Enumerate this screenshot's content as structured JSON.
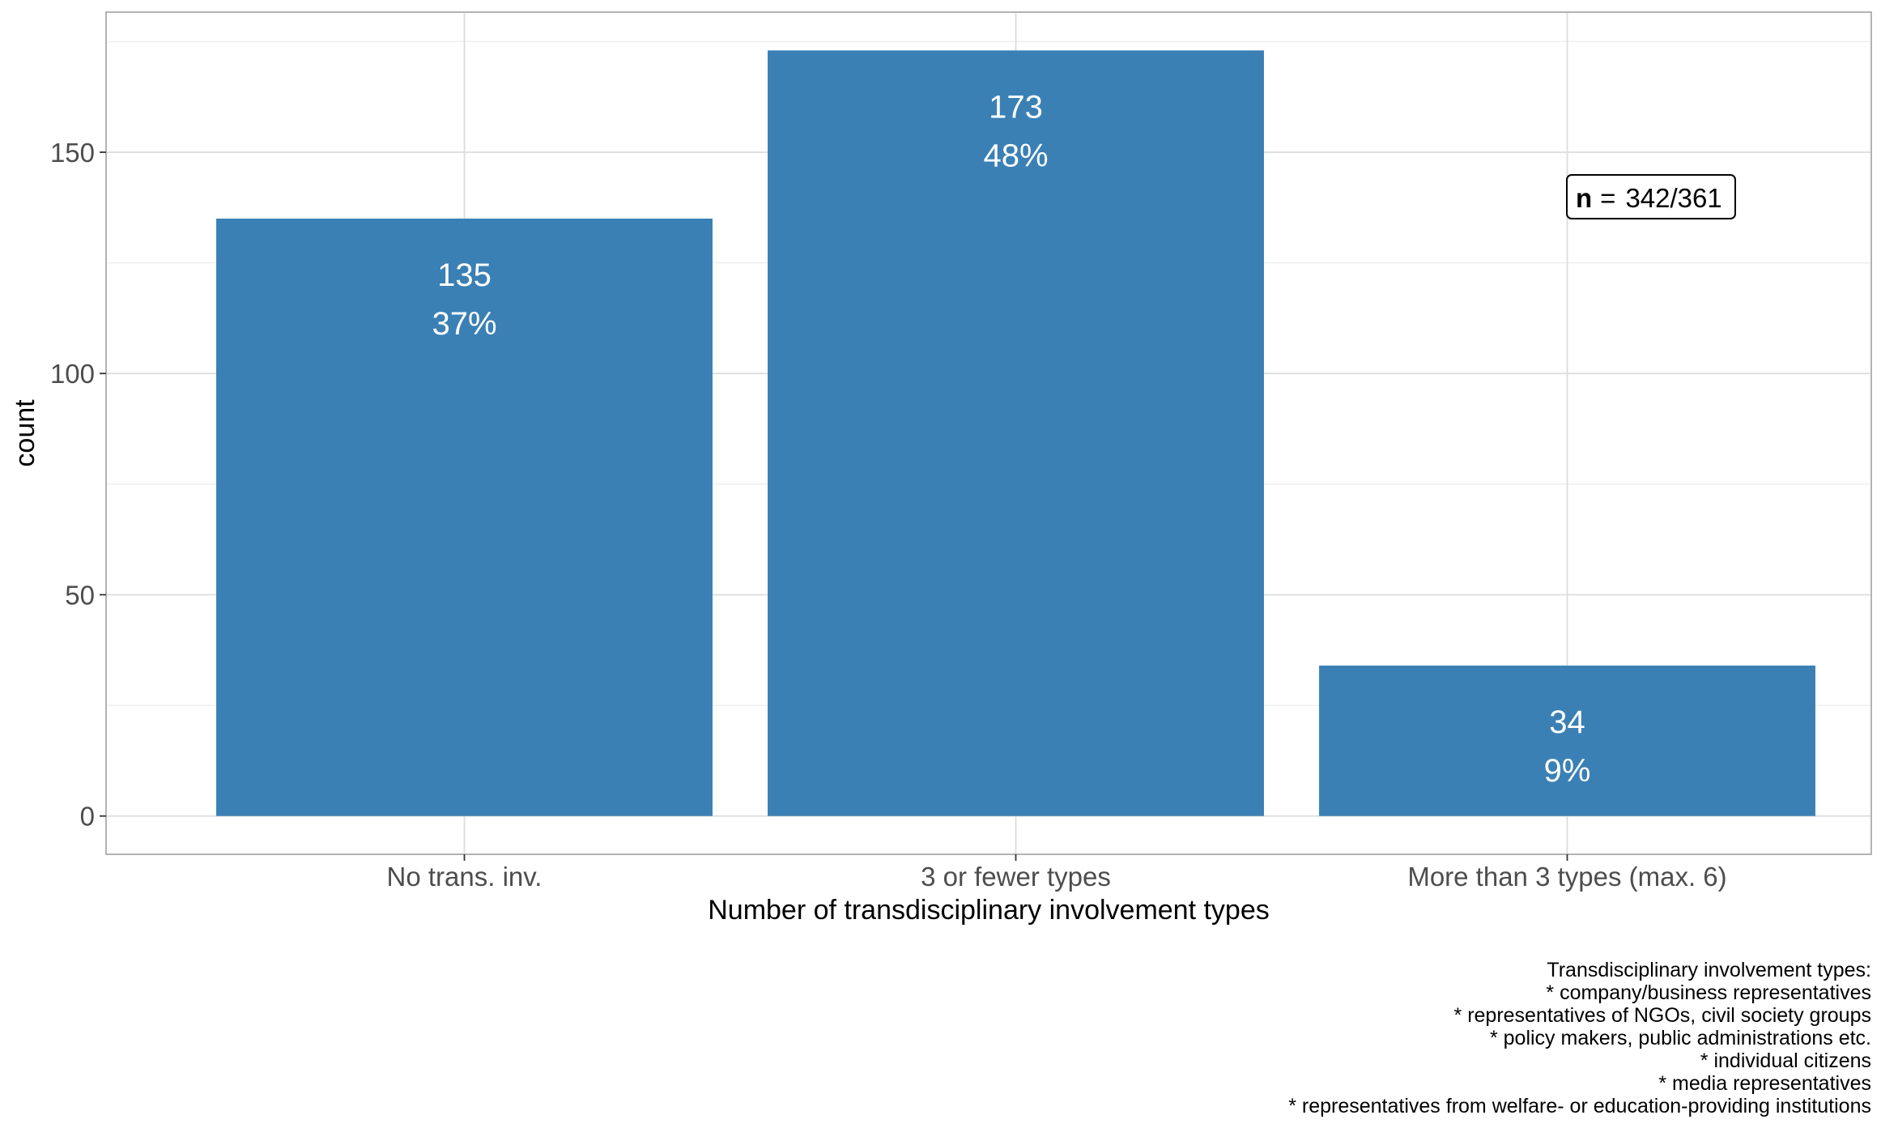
{
  "colors": {
    "bar": "#3a80b5",
    "panel_border": "#b3b3b3",
    "grid_major": "#dcdcdc",
    "grid_minor": "#efefef"
  },
  "chart_data": {
    "type": "bar",
    "categories": [
      "No trans. inv.",
      "3 or fewer types",
      "More than 3 types (max. 6)"
    ],
    "values": [
      135,
      173,
      34
    ],
    "percent_labels": [
      "37%",
      "48%",
      "9%"
    ],
    "xlabel": "Number of transdisciplinary involvement types",
    "ylabel": "count",
    "ylim": [
      -8.65,
      181.65
    ],
    "yticks": [
      0,
      50,
      100,
      150
    ],
    "grid": true,
    "annotation": {
      "n_label": "n",
      "n_equals": "=",
      "n_value": "342/361"
    },
    "caption": [
      "Transdisciplinary involvement types:",
      "* company/business representatives",
      "* representatives of NGOs, civil society groups",
      "* policy makers, public administrations etc.",
      "* individual citizens",
      "* media representatives",
      "* representatives from welfare- or education-providing institutions"
    ]
  }
}
